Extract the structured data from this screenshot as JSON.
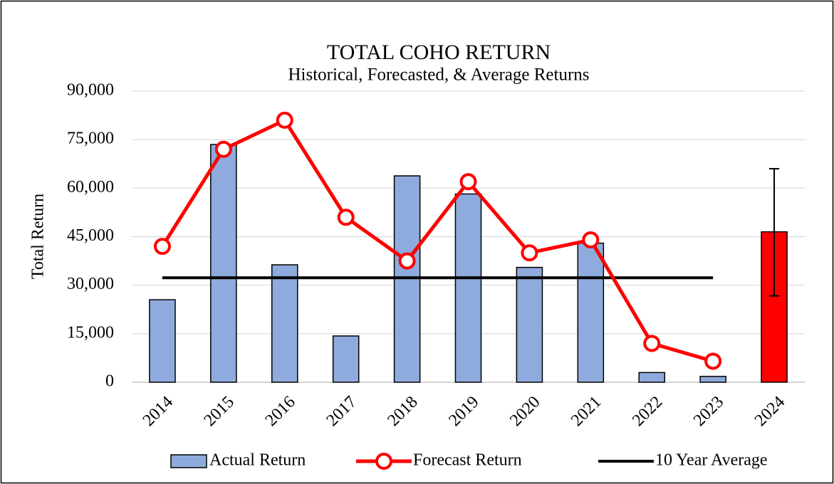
{
  "chart_data": {
    "type": "bar-line",
    "title": "TOTAL COHO RETURN",
    "subtitle": "Historical, Forecasted, & Average Returns",
    "y_label": "Total Return",
    "categories": [
      "2014",
      "2015",
      "2016",
      "2017",
      "2018",
      "2019",
      "2020",
      "2021",
      "2022",
      "2023",
      "2024"
    ],
    "series": [
      {
        "name": "Actual Return",
        "kind": "bar",
        "color": "#8faadc",
        "values": [
          25500,
          73500,
          36300,
          14300,
          63800,
          58200,
          35500,
          43000,
          3000,
          1800,
          null
        ]
      },
      {
        "name": "Forecast Return",
        "kind": "line-marker",
        "color": "#ff0000",
        "values": [
          42000,
          72000,
          81000,
          51000,
          37500,
          62000,
          40000,
          44000,
          12000,
          6500,
          null
        ]
      },
      {
        "name": "10 Year Average",
        "kind": "line",
        "color": "#000000",
        "values": [
          32300,
          32300,
          32300,
          32300,
          32300,
          32300,
          32300,
          32300,
          32300,
          32300,
          null
        ]
      }
    ],
    "forecast_bar": {
      "category": "2024",
      "value": 46500,
      "error": [
        26700,
        66000
      ],
      "color": "#ff0000"
    },
    "ylim": [
      0,
      90000
    ],
    "yticks": [
      0,
      {
        "value": 15000,
        "label": "15,000"
      },
      {
        "value": 30000,
        "label": "30,000"
      },
      {
        "value": 45000,
        "label": "45,000"
      },
      {
        "value": 60000,
        "label": "60,000"
      },
      {
        "value": 75000,
        "label": "75,000"
      },
      {
        "value": 90000,
        "label": "90,000"
      }
    ],
    "grid": true,
    "legend": "bottom"
  }
}
